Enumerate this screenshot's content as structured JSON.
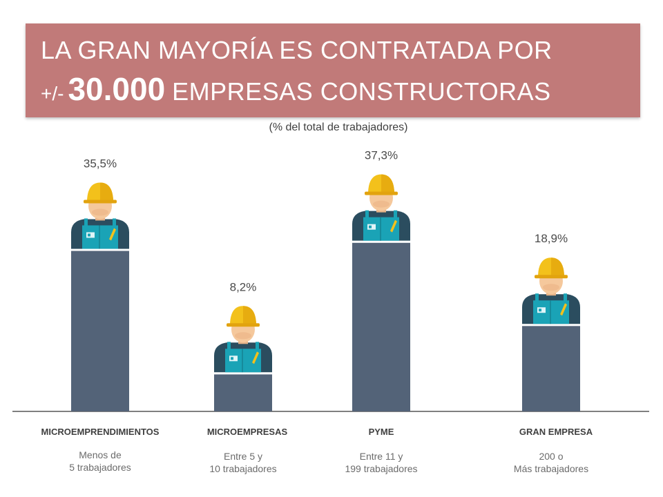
{
  "header": {
    "line1": "LA GRAN MAYORÍA ES CONTRATADA POR",
    "line2_prefix": "+/-",
    "line2_number": "30.000",
    "line2_suffix": "EMPRESAS CONSTRUCTORAS"
  },
  "subtitle": "(%  del total de trabajadores)",
  "colors": {
    "banner": "#c17a79",
    "bar": "#536378",
    "axis": "#7f7f7f",
    "helmet": "#f3c11b",
    "overalls": "#1aa3b6",
    "shirt": "#2b4d5f",
    "skin": "#f5c89c"
  },
  "chart_data": {
    "type": "bar",
    "title": "",
    "xlabel": "",
    "ylabel": "",
    "categories": [
      "MICROEMPRENDIMIENTOS",
      "MICROEMPRESAS",
      "PYME",
      "GRAN EMPRESA"
    ],
    "values": [
      35.5,
      8.2,
      37.3,
      18.9
    ],
    "value_labels": [
      "35,5%",
      "8,2%",
      "37,3%",
      "18,9%"
    ],
    "descriptions": [
      [
        "Menos de",
        "5 trabajadores"
      ],
      [
        "Entre 5 y",
        "10 trabajadores"
      ],
      [
        "Entre 11 y",
        "199 trabajadores"
      ],
      [
        "200 o",
        "Más trabajadores"
      ]
    ],
    "grid": false,
    "legend": "none",
    "marker_icon": "construction-worker-icon"
  }
}
